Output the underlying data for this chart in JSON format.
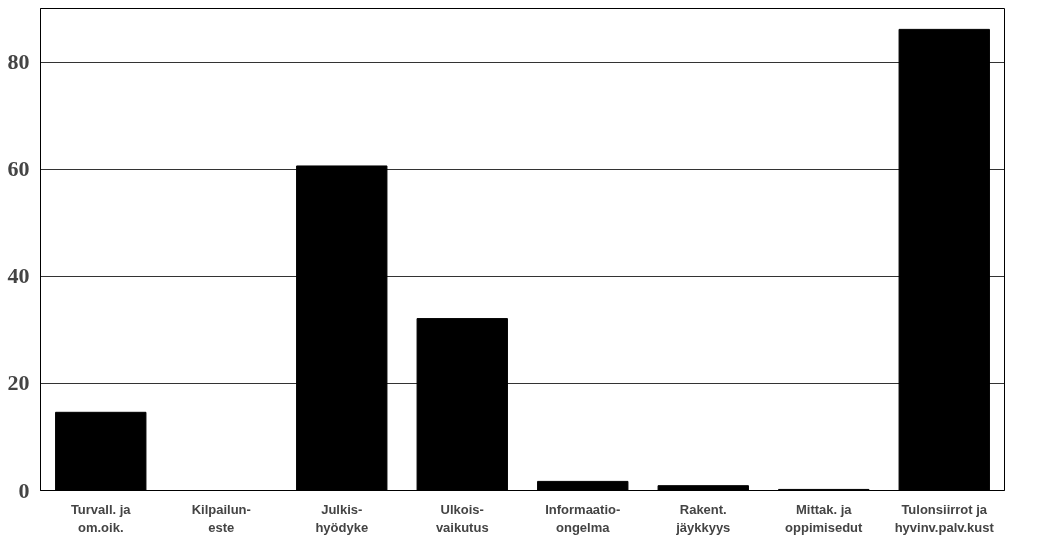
{
  "chart_data": {
    "type": "bar",
    "categories": [
      "Turvall. ja\nom.oik.",
      "Kilpailun-\neste",
      "Julkis-\nhyödyke",
      "Ulkois-\nvaikutus",
      "Informaatio-\nongelma",
      "Rakent.\njäykkyys",
      "Mittak. ja\noppimisedut",
      "Tulonsiirrot ja\nhyvinv.palv.kust"
    ],
    "values": [
      14.6,
      null,
      60.6,
      32.1,
      1.7,
      0.9,
      0.2,
      86.1
    ],
    "color": "#000000",
    "ylim": [
      0,
      90
    ],
    "yticks": [
      0,
      20,
      40,
      60,
      80
    ],
    "grid": "y"
  }
}
